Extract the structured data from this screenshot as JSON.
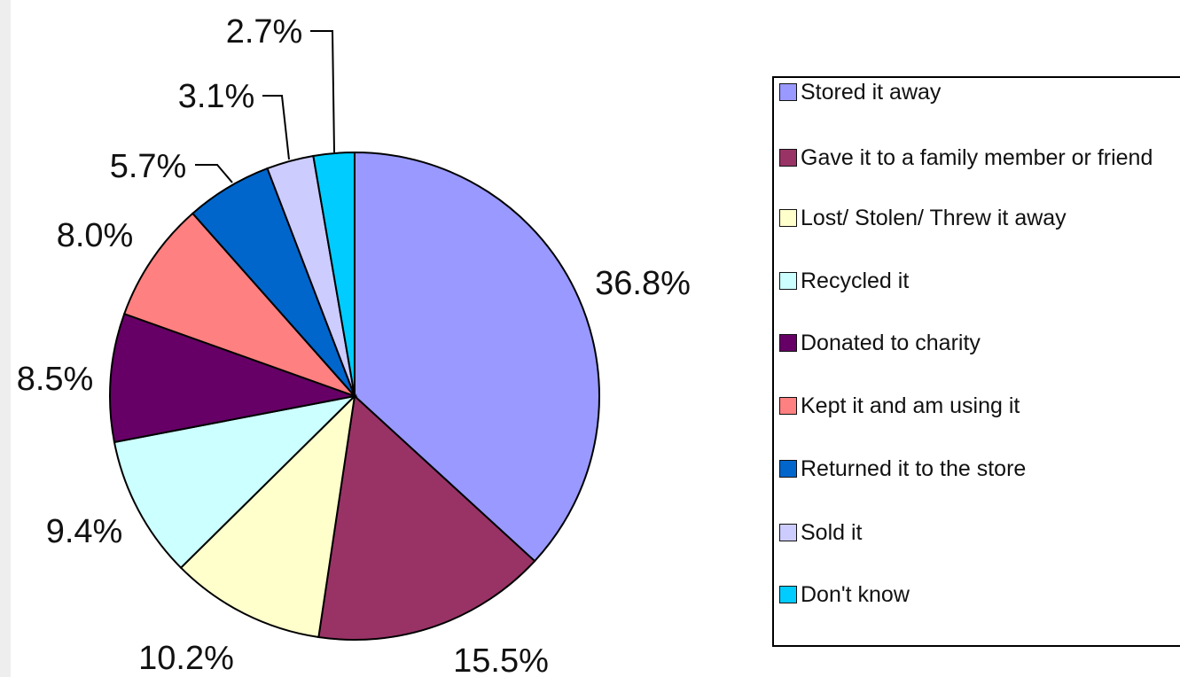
{
  "chart_data": {
    "type": "pie",
    "title": "",
    "legend_position": "right",
    "slices": [
      {
        "label": "Stored it away",
        "value": 36.8,
        "value_label": "36.8%",
        "color": "#9999ff"
      },
      {
        "label": "Gave it to a family member or friend",
        "value": 15.5,
        "value_label": "15.5%",
        "color": "#993366"
      },
      {
        "label": "Lost/ Stolen/ Threw it away",
        "value": 10.2,
        "value_label": "10.2%",
        "color": "#ffffcc"
      },
      {
        "label": "Recycled it",
        "value": 9.4,
        "value_label": "9.4%",
        "color": "#ccffff"
      },
      {
        "label": "Donated to charity",
        "value": 8.5,
        "value_label": "8.5%",
        "color": "#660066"
      },
      {
        "label": "Kept it and am using it",
        "value": 8.0,
        "value_label": "8.0%",
        "color": "#ff8080"
      },
      {
        "label": "Returned it to the store",
        "value": 5.7,
        "value_label": "5.7%",
        "color": "#0066cc"
      },
      {
        "label": "Sold it",
        "value": 3.1,
        "value_label": "3.1%",
        "color": "#ccccff"
      },
      {
        "label": "Don't know",
        "value": 2.7,
        "value_label": "2.7%",
        "color": "#00ccff"
      }
    ]
  }
}
